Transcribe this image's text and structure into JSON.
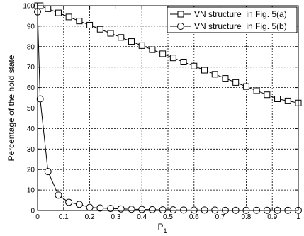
{
  "chart_data": {
    "type": "line",
    "xlabel": "P",
    "xlabel_subscript": "1",
    "ylabel": "Percentage of the hold state",
    "xlim": [
      0,
      1
    ],
    "ylim": [
      0,
      100
    ],
    "xticks": [
      "0",
      "0.1",
      "0.2",
      "0.3",
      "0.4",
      "0.5",
      "0.6",
      "0.7",
      "0.8",
      "0.9",
      "1"
    ],
    "yticks": [
      "0",
      "10",
      "20",
      "30",
      "40",
      "50",
      "60",
      "70",
      "80",
      "90",
      "100"
    ],
    "grid": true,
    "legend_position": "top-right",
    "series": [
      {
        "name": "VN structure  in Fig. 5(a)",
        "marker": "square",
        "x": [
          0,
          0.01,
          0.04,
          0.08,
          0.12,
          0.16,
          0.2,
          0.24,
          0.28,
          0.32,
          0.36,
          0.4,
          0.44,
          0.48,
          0.52,
          0.56,
          0.6,
          0.64,
          0.68,
          0.72,
          0.76,
          0.8,
          0.84,
          0.88,
          0.92,
          0.96,
          1.0
        ],
        "values": [
          100,
          100,
          98.5,
          96.5,
          94.5,
          92.5,
          90.5,
          88.5,
          86.5,
          84.5,
          82.5,
          80.5,
          78.5,
          76.5,
          74.5,
          72.5,
          70.5,
          68.5,
          66.5,
          64.5,
          62.5,
          60.5,
          58.5,
          56.5,
          54.5,
          53.5,
          52.5
        ]
      },
      {
        "name": "VN structure  in Fig. 5(b)",
        "marker": "circle",
        "x": [
          0,
          0.01,
          0.04,
          0.08,
          0.12,
          0.16,
          0.2,
          0.24,
          0.28,
          0.32,
          0.36,
          0.4,
          0.44,
          0.48,
          0.52,
          0.56,
          0.6,
          0.64,
          0.68,
          0.72,
          0.76,
          0.8,
          0.84,
          0.88,
          0.92,
          0.96,
          1.0
        ],
        "values": [
          97,
          54.5,
          19,
          7.5,
          4,
          3,
          1.5,
          1.2,
          1,
          0.8,
          0.6,
          0.5,
          0.4,
          0.3,
          0.3,
          0.2,
          0.2,
          0.2,
          0.2,
          0.1,
          0.1,
          0.1,
          0.1,
          0.1,
          0.1,
          0.1,
          0.1
        ]
      }
    ]
  }
}
